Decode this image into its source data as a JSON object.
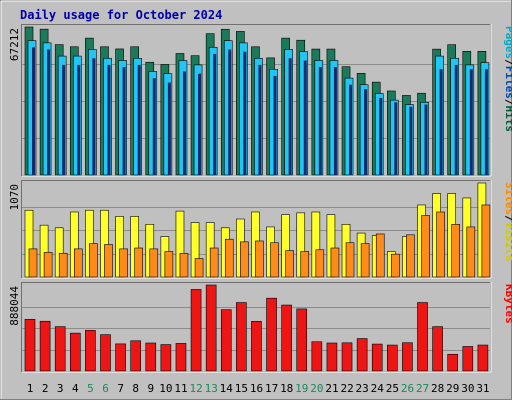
{
  "chart_data": [
    {
      "type": "bar",
      "title": "Daily usage for October 2024",
      "ymax_label": "67212",
      "ylim": [
        0,
        67212
      ],
      "legend": [
        {
          "name": "Pages",
          "color": "#00aacc"
        },
        {
          "name": "Files",
          "color": "#0044aa"
        },
        {
          "name": "Hits",
          "color": "#005a3c"
        }
      ],
      "categories": [
        "1",
        "2",
        "3",
        "4",
        "5",
        "6",
        "7",
        "8",
        "9",
        "10",
        "11",
        "12",
        "13",
        "14",
        "15",
        "16",
        "17",
        "18",
        "19",
        "20",
        "21",
        "22",
        "23",
        "24",
        "25",
        "26",
        "27",
        "28",
        "29",
        "30",
        "31"
      ],
      "weekend_days": [
        "5",
        "6",
        "12",
        "13",
        "19",
        "20",
        "26",
        "27"
      ],
      "series": [
        {
          "name": "Hits",
          "color": "#1b7a5a",
          "values": [
            67212,
            66230,
            59210,
            58230,
            62160,
            58230,
            57250,
            58230,
            51210,
            50200,
            55180,
            54180,
            64190,
            66200,
            65200,
            58230,
            53190,
            62160,
            61210,
            57190,
            57190,
            49190,
            46180,
            42170,
            38160,
            36120,
            37140,
            57160,
            59170,
            56170,
            56170
          ]
        },
        {
          "name": "Files",
          "color": "#0b2d6e",
          "values": [
            58000,
            57000,
            50000,
            50000,
            53000,
            50000,
            49000,
            50000,
            44000,
            42000,
            47000,
            46000,
            55000,
            57000,
            56000,
            50000,
            45000,
            53000,
            52000,
            49000,
            49000,
            41000,
            39000,
            35000,
            33000,
            31000,
            32000,
            48000,
            50000,
            48000,
            48000
          ]
        },
        {
          "name": "Pages",
          "color": "#22c6f5",
          "values": [
            61000,
            60000,
            54000,
            54000,
            57000,
            53000,
            52000,
            53000,
            47000,
            46000,
            52000,
            50000,
            58000,
            61000,
            60000,
            53000,
            48000,
            57000,
            56000,
            52000,
            52000,
            44000,
            41000,
            37000,
            34000,
            32000,
            33000,
            54000,
            53000,
            50000,
            51000
          ]
        }
      ]
    },
    {
      "type": "bar",
      "ymax_label": "1070",
      "ylim": [
        0,
        1070
      ],
      "legend": [
        {
          "name": "Sites",
          "color": "#ff8800"
        },
        {
          "name": "Visits",
          "color": "#cccc00"
        }
      ],
      "series": [
        {
          "name": "Visits",
          "color": "#ffff2a",
          "values": [
            760,
            590,
            560,
            740,
            760,
            760,
            690,
            690,
            600,
            460,
            750,
            620,
            620,
            560,
            660,
            740,
            570,
            710,
            730,
            740,
            710,
            600,
            500,
            470,
            290,
            460,
            820,
            950,
            950,
            900,
            1070
          ]
        },
        {
          "name": "Sites",
          "color": "#ff8c1a",
          "values": [
            320,
            280,
            270,
            320,
            380,
            370,
            320,
            330,
            320,
            290,
            270,
            210,
            330,
            430,
            400,
            410,
            390,
            300,
            290,
            310,
            330,
            390,
            380,
            490,
            260,
            480,
            700,
            740,
            600,
            570,
            820
          ]
        }
      ]
    },
    {
      "type": "bar",
      "ymax_label": "888044",
      "ylim": [
        0,
        888044
      ],
      "legend": [
        {
          "name": "KBytes",
          "color": "#ff0000"
        }
      ],
      "series": [
        {
          "name": "KBytes",
          "color": "#ee1515",
          "values": [
            534000,
            514000,
            458000,
            391000,
            420000,
            375000,
            280000,
            312000,
            289000,
            273000,
            285000,
            842000,
            888000,
            633000,
            707000,
            513000,
            752000,
            681000,
            641000,
            302000,
            289000,
            291000,
            335000,
            278000,
            268000,
            292000,
            707000,
            458000,
            173000,
            253000,
            268000
          ]
        }
      ]
    }
  ]
}
